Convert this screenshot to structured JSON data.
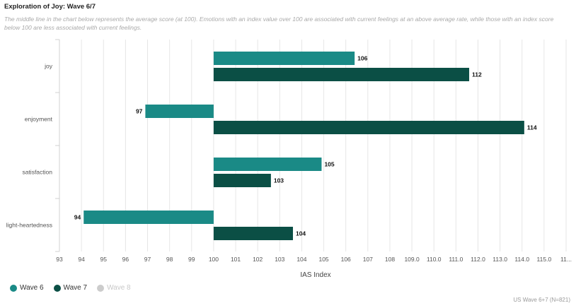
{
  "page": {
    "title": "Exploration of Joy: Wave 6/7",
    "subtitle": "The middle line in the chart below represents the average score (at 100). Emotions with an index value over 100 are associated with current feelings at an above average rate, while those with an index score below 100 are less associated with current feelings.",
    "footer": "US Wave 6+7 (N=821)"
  },
  "legend": [
    {
      "label": "Wave 6",
      "color": "#1a8a86",
      "active": true
    },
    {
      "label": "Wave 7",
      "color": "#0b4f45",
      "active": true
    },
    {
      "label": "Wave 8",
      "color": "#cccccc",
      "active": false
    }
  ],
  "chart_data": {
    "type": "bar",
    "orientation": "horizontal",
    "baseline": 100,
    "categories": [
      "joy",
      "enjoyment",
      "satisfaction",
      "light-heartedness"
    ],
    "series": [
      {
        "name": "Wave 6",
        "color": "#1a8a86",
        "values": [
          106.4,
          96.9,
          104.9,
          94.1
        ],
        "labels": [
          "106",
          "97",
          "105",
          "94"
        ]
      },
      {
        "name": "Wave 7",
        "color": "#0b4f45",
        "values": [
          111.6,
          114.1,
          102.6,
          103.6
        ],
        "labels": [
          "112",
          "114",
          "103",
          "104"
        ]
      }
    ],
    "xlabel": "IAS Index",
    "xlim": [
      93,
      116
    ],
    "xticks": [
      "93",
      "94",
      "95",
      "96",
      "97",
      "98",
      "99",
      "100",
      "101",
      "102",
      "103",
      "104",
      "105",
      "106",
      "107",
      "108",
      "109.0",
      "110.0",
      "111.0",
      "112.0",
      "113.0",
      "114.0",
      "115.0",
      "11..."
    ],
    "grid": true,
    "legend_position": "bottom-left"
  }
}
